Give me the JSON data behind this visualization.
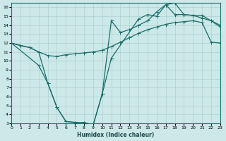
{
  "xlabel": "Humidex (Indice chaleur)",
  "xlim": [
    0,
    23
  ],
  "ylim": [
    3,
    16.5
  ],
  "xticks": [
    0,
    1,
    2,
    3,
    4,
    5,
    6,
    7,
    8,
    9,
    10,
    11,
    12,
    13,
    14,
    15,
    16,
    17,
    18,
    19,
    20,
    21,
    22,
    23
  ],
  "yticks": [
    3,
    4,
    5,
    6,
    7,
    8,
    9,
    10,
    11,
    12,
    13,
    14,
    15,
    16
  ],
  "bg_color": "#cce8e8",
  "line_color": "#1a6e6a",
  "line1_x": [
    0,
    2,
    3,
    4,
    5,
    6,
    7,
    8,
    9,
    10,
    11,
    14,
    15,
    16,
    17,
    18,
    19,
    20,
    21,
    22,
    23
  ],
  "line1_y": [
    12,
    11.5,
    11.0,
    7.5,
    4.8,
    3.2,
    3.1,
    3.1,
    2.8,
    6.3,
    10.3,
    14.7,
    15.2,
    15.0,
    16.3,
    16.5,
    15.2,
    15.1,
    15.1,
    14.5,
    13.8
  ],
  "line2_x": [
    0,
    1,
    2,
    3,
    4,
    5,
    6,
    7,
    8,
    9,
    10,
    11,
    12,
    13,
    14,
    15,
    16,
    17,
    18,
    19,
    20,
    21,
    22,
    23
  ],
  "line2_y": [
    12.0,
    11.7,
    11.5,
    11.0,
    10.6,
    10.5,
    10.7,
    10.8,
    10.9,
    11.0,
    11.2,
    11.6,
    12.1,
    12.6,
    13.1,
    13.5,
    13.8,
    14.1,
    14.3,
    14.4,
    14.5,
    14.3,
    12.1,
    12.0
  ],
  "line3_x": [
    0,
    3,
    4,
    5,
    6,
    7,
    8,
    9,
    10,
    11,
    12,
    13,
    14,
    15,
    16,
    17,
    18,
    19,
    20,
    21,
    22,
    23
  ],
  "line3_y": [
    12.0,
    9.5,
    7.5,
    4.8,
    3.2,
    3.1,
    3.1,
    2.8,
    6.3,
    14.5,
    13.2,
    13.5,
    14.0,
    14.5,
    15.5,
    16.3,
    15.2,
    15.2,
    15.1,
    14.8,
    14.5,
    14.0
  ]
}
